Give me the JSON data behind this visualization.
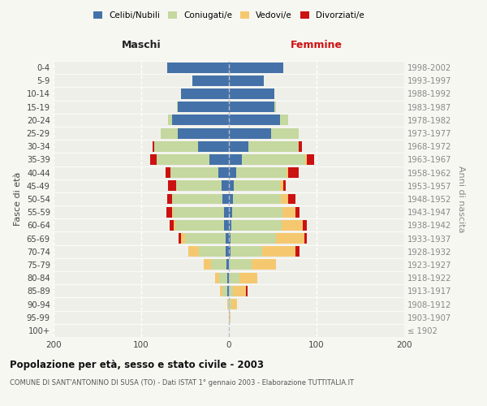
{
  "age_groups": [
    "100+",
    "95-99",
    "90-94",
    "85-89",
    "80-84",
    "75-79",
    "70-74",
    "65-69",
    "60-64",
    "55-59",
    "50-54",
    "45-49",
    "40-44",
    "35-39",
    "30-34",
    "25-29",
    "20-24",
    "15-19",
    "10-14",
    "5-9",
    "0-4"
  ],
  "birth_years": [
    "≤ 1902",
    "1903-1907",
    "1908-1912",
    "1913-1917",
    "1918-1922",
    "1923-1927",
    "1928-1932",
    "1933-1937",
    "1938-1942",
    "1943-1947",
    "1948-1952",
    "1953-1957",
    "1958-1962",
    "1963-1967",
    "1968-1972",
    "1973-1977",
    "1978-1982",
    "1983-1987",
    "1988-1992",
    "1993-1997",
    "1998-2002"
  ],
  "maschi": {
    "celibi": [
      0,
      0,
      0,
      2,
      2,
      3,
      4,
      4,
      6,
      6,
      7,
      8,
      12,
      22,
      35,
      58,
      65,
      58,
      55,
      42,
      70
    ],
    "coniugati": [
      0,
      0,
      1,
      5,
      9,
      17,
      30,
      46,
      55,
      58,
      58,
      52,
      55,
      60,
      50,
      20,
      4,
      1,
      0,
      0,
      0
    ],
    "vedovi": [
      0,
      0,
      1,
      3,
      5,
      9,
      12,
      5,
      2,
      1,
      0,
      0,
      0,
      0,
      0,
      0,
      0,
      0,
      0,
      0,
      0
    ],
    "divorziati": [
      0,
      0,
      0,
      0,
      0,
      0,
      0,
      2,
      5,
      6,
      5,
      9,
      5,
      8,
      2,
      0,
      0,
      0,
      0,
      0,
      0
    ]
  },
  "femmine": {
    "nubili": [
      0,
      0,
      0,
      0,
      0,
      0,
      2,
      2,
      3,
      4,
      5,
      6,
      8,
      15,
      22,
      48,
      58,
      52,
      52,
      40,
      62
    ],
    "coniugate": [
      0,
      1,
      3,
      5,
      12,
      26,
      36,
      52,
      57,
      57,
      54,
      52,
      58,
      72,
      58,
      32,
      10,
      2,
      0,
      0,
      0
    ],
    "vedove": [
      0,
      1,
      6,
      14,
      20,
      28,
      38,
      32,
      24,
      15,
      9,
      4,
      2,
      2,
      0,
      0,
      0,
      0,
      0,
      0,
      0
    ],
    "divorziate": [
      0,
      0,
      0,
      2,
      0,
      0,
      5,
      3,
      5,
      5,
      8,
      3,
      12,
      8,
      3,
      0,
      0,
      0,
      0,
      0,
      0
    ]
  },
  "colors": {
    "celibi": "#4472a8",
    "coniugati": "#c5d8a0",
    "vedovi": "#f5c870",
    "divorziati": "#cc1111"
  },
  "xlim": 200,
  "title": "Popolazione per età, sesso e stato civile - 2003",
  "subtitle": "COMUNE DI SANT'ANTONINO DI SUSA (TO) - Dati ISTAT 1° gennaio 2003 - Elaborazione TUTTITALIA.IT",
  "ylabel_left": "Fasce di età",
  "ylabel_right": "Anni di nascita",
  "bg_color": "#f7f7f2",
  "plot_bg": "#efefea"
}
